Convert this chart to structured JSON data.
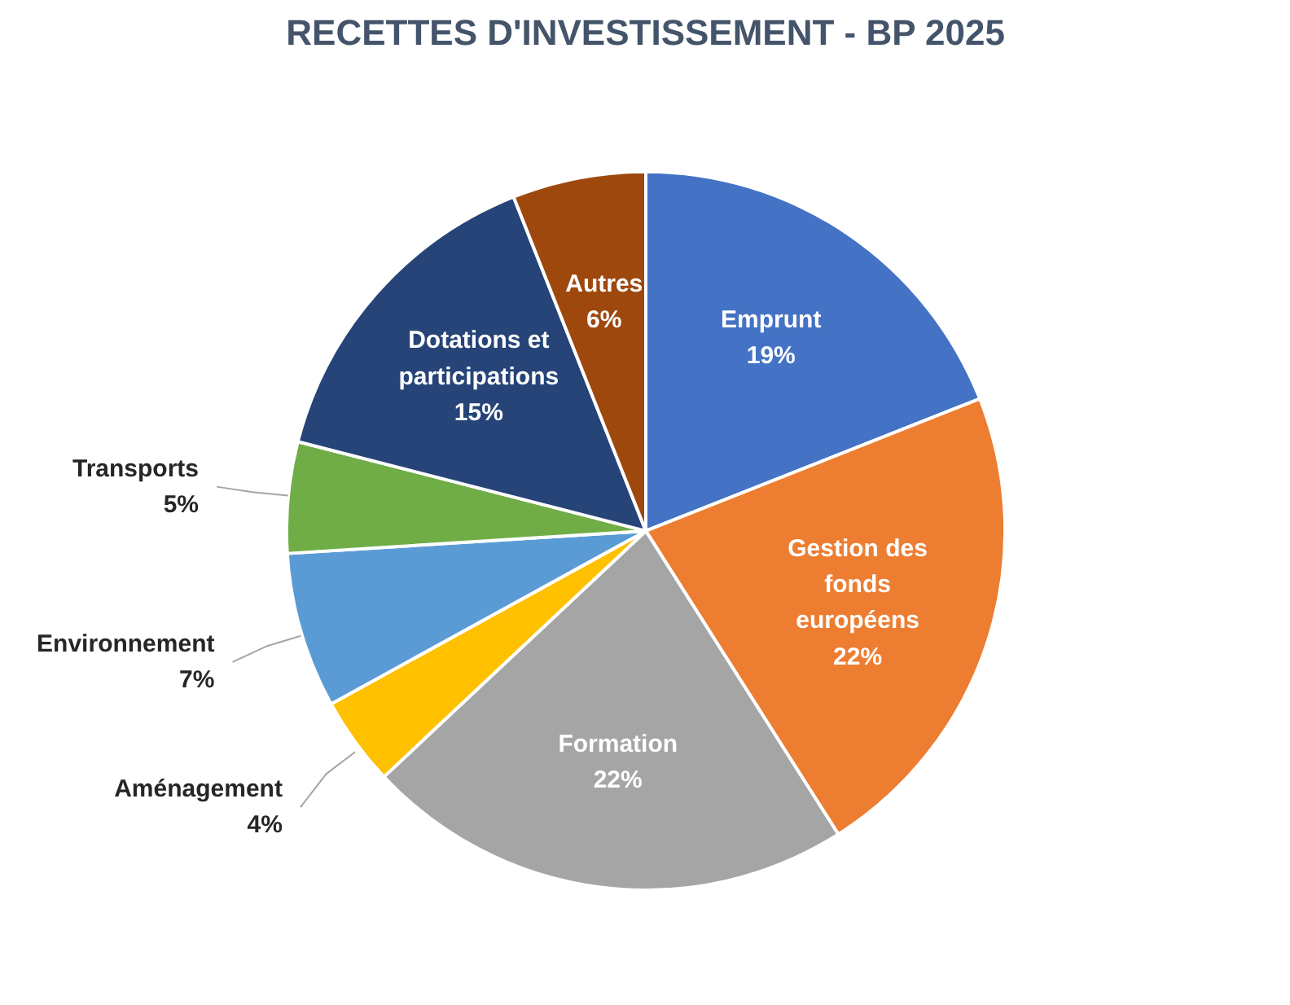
{
  "chart_data": {
    "type": "pie",
    "title": "RECETTES D'INVESTISSEMENT - BP 2025",
    "categories": [
      "Emprunt",
      "Gestion des fonds européens",
      "Formation",
      "Aménagement",
      "Environnement",
      "Transports",
      "Dotations et participations",
      "Autres"
    ],
    "values": [
      19,
      22,
      22,
      4,
      7,
      5,
      15,
      6
    ],
    "colors": [
      "#4472c4",
      "#ed7d31",
      "#a5a5a5",
      "#ffc000",
      "#5b9bd5",
      "#70ad47",
      "#264478",
      "#9e480e"
    ],
    "value_labels": [
      "19%",
      "22%",
      "22%",
      "4%",
      "7%",
      "5%",
      "15%",
      "6%"
    ]
  }
}
